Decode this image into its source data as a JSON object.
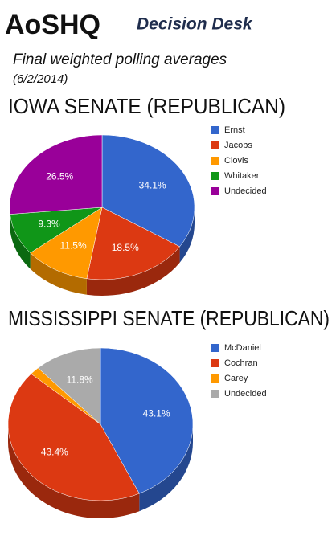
{
  "header": {
    "logo": "AoSHQ",
    "name": "Decision Desk",
    "subtitle": "Final weighted polling averages",
    "date": "(6/2/2014)"
  },
  "chart_data": [
    {
      "type": "pie",
      "title": "IOWA SENATE (REPUBLICAN)",
      "categories": [
        "Ernst",
        "Jacobs",
        "Clovis",
        "Whitaker",
        "Undecided"
      ],
      "values": [
        34.1,
        18.5,
        11.5,
        9.3,
        26.5
      ],
      "value_labels": [
        "34.1%",
        "18.5%",
        "11.5%",
        "9.3%",
        "26.5%"
      ],
      "colors": [
        "#3366cc",
        "#dc3912",
        "#ff9900",
        "#109618",
        "#990099"
      ]
    },
    {
      "type": "pie",
      "title": "MISSISSIPPI SENATE (REPUBLICAN)",
      "categories": [
        "McDaniel",
        "Cochran",
        "Carey",
        "Undecided"
      ],
      "values": [
        43.1,
        43.4,
        1.7,
        11.8
      ],
      "value_labels": [
        "43.1%",
        "43.4%",
        null,
        "11.8%"
      ],
      "colors": [
        "#3366cc",
        "#dc3912",
        "#ff9900",
        "#aaaaaa"
      ]
    }
  ]
}
